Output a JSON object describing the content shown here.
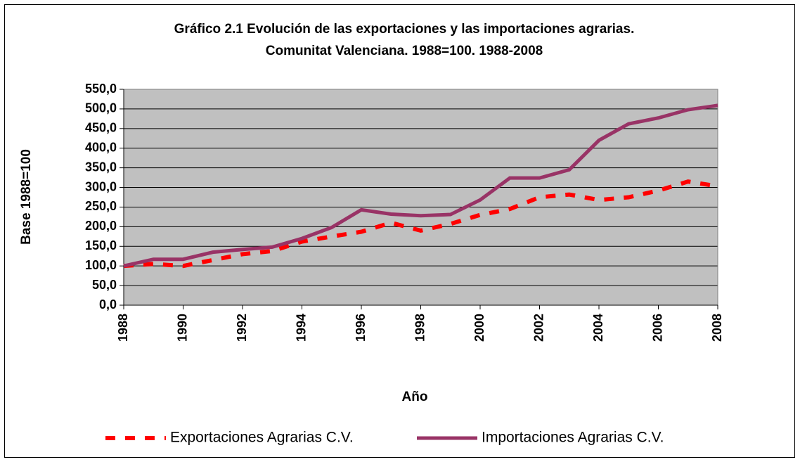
{
  "chart_data": {
    "type": "line",
    "title": "Gráfico 2.1 Evolución de las exportaciones y las importaciones agrarias.",
    "subtitle": "Comunitat Valenciana. 1988=100. 1988-2008",
    "x_label": "Año",
    "y_label": "Base 1988=100",
    "x": [
      1988,
      1989,
      1990,
      1991,
      1992,
      1993,
      1994,
      1995,
      1996,
      1997,
      1998,
      1999,
      2000,
      2001,
      2002,
      2003,
      2004,
      2005,
      2006,
      2007,
      2008
    ],
    "series": [
      {
        "name": "Exportaciones Agrarias C.V.",
        "color": "#ff0000",
        "line_style": "dashed",
        "values": [
          100,
          105,
          100,
          115,
          130,
          138,
          162,
          175,
          187,
          210,
          190,
          207,
          230,
          245,
          275,
          282,
          268,
          275,
          292,
          315,
          303
        ]
      },
      {
        "name": "Importaciones Agrarias C.V.",
        "color": "#993366",
        "line_style": "solid",
        "values": [
          100,
          117,
          117,
          135,
          142,
          148,
          170,
          198,
          243,
          232,
          228,
          231,
          268,
          324,
          324,
          345,
          420,
          462,
          477,
          498,
          509
        ]
      }
    ],
    "xlim": [
      1988,
      2008
    ],
    "xticks": [
      1988,
      1990,
      1992,
      1994,
      1996,
      1998,
      2000,
      2002,
      2004,
      2006,
      2008
    ],
    "ylim": [
      0,
      550
    ],
    "yticks": [
      {
        "value": 0,
        "label": "0,0"
      },
      {
        "value": 50,
        "label": "50,0"
      },
      {
        "value": 100,
        "label": "100,0"
      },
      {
        "value": 150,
        "label": "150,0"
      },
      {
        "value": 200,
        "label": "200,0"
      },
      {
        "value": 250,
        "label": "250,0"
      },
      {
        "value": 300,
        "label": "300,0"
      },
      {
        "value": 350,
        "label": "350,0"
      },
      {
        "value": 400,
        "label": "400,0"
      },
      {
        "value": 450,
        "label": "450,0"
      },
      {
        "value": 500,
        "label": "500,0"
      },
      {
        "value": 550,
        "label": "550,0"
      }
    ],
    "grid": true,
    "plot_background": "#c0c0c0",
    "legend": "bottom"
  }
}
